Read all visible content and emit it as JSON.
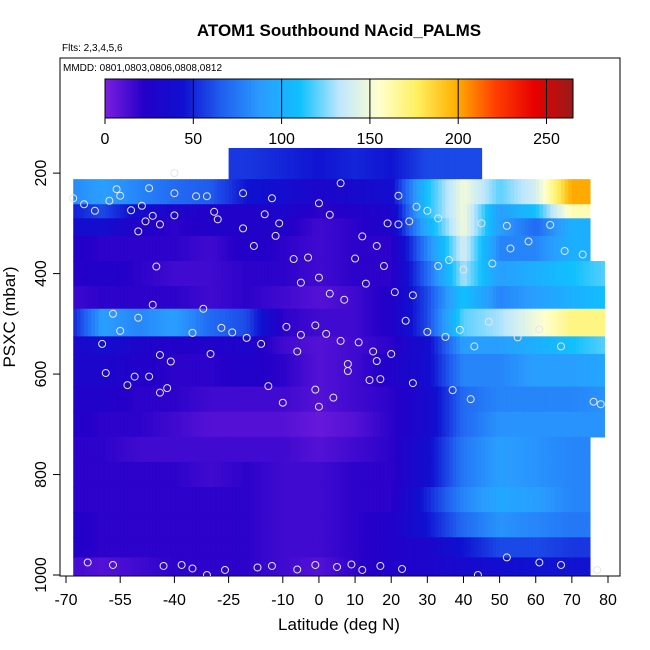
{
  "chart_data": {
    "type": "heatmap",
    "title": "ATOM1 Southbound NAcid_PALMS",
    "flights_note": "Flts: 2,3,4,5,6",
    "dates_note": "MMDD: 0801,0803,0806,0808,0812",
    "xlabel": "Latitude (deg N)",
    "ylabel": "PSXC (mbar)",
    "xlim": [
      -70,
      80
    ],
    "ylim": [
      1000,
      0
    ],
    "x_ticks": [
      -70,
      -55,
      -40,
      -25,
      -10,
      0,
      10,
      20,
      30,
      40,
      50,
      60,
      70,
      80
    ],
    "x_tick_labels": [
      "-70",
      "-55",
      "-40",
      "-25",
      "-10",
      "0",
      "10",
      "20",
      "30",
      "40",
      "50",
      "60",
      "70",
      "80"
    ],
    "y_ticks": [
      200,
      400,
      600,
      800,
      1000
    ],
    "y_tick_labels": [
      "200",
      "400",
      "600",
      "800",
      "1000"
    ],
    "colorbar": {
      "range": [
        0,
        265
      ],
      "ticks": [
        0,
        50,
        100,
        150,
        200,
        250
      ],
      "tick_labels": [
        "0",
        "50",
        "100",
        "150",
        "200",
        "250"
      ],
      "colors": [
        "#7b1fe0",
        "#2400c8",
        "#1010d0",
        "#2060f0",
        "#2a9cff",
        "#10c0ff",
        "#bde6ff",
        "#ffffd0",
        "#fff060",
        "#ffb000",
        "#ff4000",
        "#e80000",
        "#9a1a1a"
      ]
    },
    "pressure_levels": [
      [
        150,
        212
      ],
      [
        212,
        262
      ],
      [
        262,
        290
      ],
      [
        290,
        325
      ],
      [
        325,
        375
      ],
      [
        375,
        425
      ],
      [
        425,
        470
      ],
      [
        470,
        525
      ],
      [
        525,
        560
      ],
      [
        560,
        625
      ],
      [
        625,
        675
      ],
      [
        675,
        725
      ],
      [
        725,
        775
      ],
      [
        775,
        825
      ],
      [
        825,
        875
      ],
      [
        875,
        925
      ],
      [
        925,
        965
      ],
      [
        965,
        1000
      ]
    ],
    "latitude_nodes": [
      -70,
      -60,
      -50,
      -40,
      -30,
      -20,
      -10,
      0,
      10,
      20,
      30,
      40,
      50,
      60,
      70,
      80
    ],
    "values": [
      [
        null,
        null,
        null,
        null,
        null,
        55,
        50,
        45,
        50,
        45,
        60,
        60,
        null,
        null,
        null,
        null
      ],
      [
        80,
        90,
        80,
        70,
        65,
        45,
        40,
        30,
        35,
        40,
        110,
        150,
        120,
        140,
        200,
        null
      ],
      [
        45,
        60,
        40,
        30,
        25,
        25,
        30,
        20,
        25,
        30,
        110,
        150,
        90,
        110,
        160,
        null
      ],
      [
        40,
        40,
        25,
        20,
        25,
        25,
        25,
        15,
        20,
        30,
        100,
        150,
        90,
        70,
        100,
        null
      ],
      [
        25,
        20,
        20,
        20,
        15,
        25,
        20,
        15,
        20,
        20,
        80,
        140,
        80,
        80,
        100,
        null
      ],
      [
        20,
        25,
        20,
        15,
        15,
        20,
        20,
        15,
        20,
        20,
        70,
        130,
        90,
        100,
        110,
        120
      ],
      [
        15,
        20,
        20,
        20,
        15,
        20,
        15,
        10,
        15,
        25,
        60,
        110,
        80,
        90,
        100,
        110
      ],
      [
        40,
        90,
        80,
        90,
        70,
        60,
        20,
        15,
        15,
        25,
        60,
        120,
        130,
        150,
        170,
        170
      ],
      [
        30,
        40,
        30,
        25,
        25,
        30,
        15,
        10,
        15,
        20,
        40,
        90,
        90,
        100,
        110,
        120
      ],
      [
        30,
        30,
        25,
        20,
        20,
        25,
        20,
        10,
        15,
        25,
        40,
        80,
        80,
        90,
        90,
        95
      ],
      [
        25,
        25,
        20,
        20,
        15,
        15,
        15,
        10,
        15,
        20,
        35,
        70,
        80,
        80,
        80,
        85
      ],
      [
        25,
        20,
        20,
        15,
        10,
        10,
        10,
        5,
        10,
        20,
        35,
        70,
        85,
        85,
        85,
        85
      ],
      [
        20,
        20,
        15,
        15,
        15,
        15,
        15,
        10,
        15,
        20,
        40,
        75,
        90,
        85,
        80,
        null
      ],
      [
        20,
        20,
        20,
        20,
        15,
        20,
        15,
        15,
        20,
        20,
        40,
        75,
        90,
        85,
        80,
        null
      ],
      [
        20,
        20,
        20,
        20,
        20,
        20,
        15,
        15,
        20,
        20,
        50,
        80,
        95,
        90,
        80,
        null
      ],
      [
        25,
        20,
        20,
        20,
        20,
        20,
        15,
        15,
        20,
        25,
        45,
        70,
        85,
        80,
        75,
        null
      ],
      [
        25,
        20,
        20,
        20,
        20,
        20,
        15,
        15,
        20,
        25,
        30,
        45,
        60,
        60,
        55,
        null
      ],
      [
        15,
        10,
        15,
        20,
        20,
        20,
        15,
        10,
        20,
        25,
        30,
        35,
        40,
        45,
        45,
        null
      ]
    ],
    "obs_points": [
      [
        -31,
        1000
      ],
      [
        -64,
        975
      ],
      [
        -57,
        980
      ],
      [
        -43,
        982
      ],
      [
        -38,
        980
      ],
      [
        -35,
        987
      ],
      [
        -26,
        990
      ],
      [
        -17,
        985
      ],
      [
        -13,
        982
      ],
      [
        -6,
        989
      ],
      [
        -1,
        980
      ],
      [
        5,
        984
      ],
      [
        9,
        979
      ],
      [
        12,
        990
      ],
      [
        17,
        982
      ],
      [
        23,
        988
      ],
      [
        44,
        1000
      ],
      [
        52,
        965
      ],
      [
        61,
        975
      ],
      [
        67,
        980
      ],
      [
        77,
        990
      ],
      [
        -49,
        265
      ],
      [
        -40,
        200
      ],
      [
        -21,
        240
      ],
      [
        -13,
        250
      ],
      [
        0,
        260
      ],
      [
        3,
        283
      ],
      [
        6,
        220
      ],
      [
        22,
        245
      ],
      [
        27,
        267
      ],
      [
        33,
        290
      ],
      [
        45,
        300
      ],
      [
        52,
        305
      ],
      [
        -57,
        480
      ],
      [
        -32,
        470
      ],
      [
        -27,
        508
      ],
      [
        -20,
        528
      ],
      [
        -16,
        540
      ],
      [
        -6,
        555
      ],
      [
        8,
        580
      ],
      [
        17,
        610
      ],
      [
        26,
        618
      ],
      [
        37,
        632
      ],
      [
        42,
        650
      ],
      [
        -56,
        232
      ],
      [
        -47,
        230
      ],
      [
        -45,
        386
      ],
      [
        -44,
        637
      ],
      [
        -42,
        628
      ],
      [
        -53,
        622
      ],
      [
        -47,
        605
      ],
      [
        -59,
        598
      ],
      [
        -51,
        605
      ],
      [
        -14,
        624
      ],
      [
        -10,
        657
      ],
      [
        0,
        665
      ],
      [
        4,
        647
      ],
      [
        -1,
        631
      ],
      [
        8,
        594
      ],
      [
        14,
        612
      ],
      [
        16,
        574
      ],
      [
        -40,
        284
      ],
      [
        -44,
        302
      ],
      [
        -31,
        246
      ],
      [
        -28,
        292
      ],
      [
        -18,
        345
      ],
      [
        -11,
        300
      ],
      [
        -3,
        368
      ],
      [
        0,
        408
      ],
      [
        10,
        370
      ],
      [
        16,
        345
      ],
      [
        19,
        300
      ],
      [
        22,
        302
      ],
      [
        25,
        296
      ],
      [
        30,
        275
      ],
      [
        12,
        326
      ],
      [
        -60,
        540
      ],
      [
        -55,
        514
      ],
      [
        -50,
        488
      ],
      [
        -46,
        462
      ],
      [
        -44,
        562
      ],
      [
        -41,
        575
      ],
      [
        -35,
        518
      ],
      [
        -30,
        560
      ],
      [
        -24,
        517
      ],
      [
        -9,
        506
      ],
      [
        -5,
        522
      ],
      [
        -1,
        503
      ],
      [
        2,
        520
      ],
      [
        6,
        534
      ],
      [
        11,
        537
      ],
      [
        15,
        555
      ],
      [
        20,
        560
      ],
      [
        24,
        494
      ],
      [
        30,
        516
      ],
      [
        35,
        526
      ],
      [
        39,
        512
      ],
      [
        43,
        545
      ],
      [
        47,
        496
      ],
      [
        55,
        527
      ],
      [
        61,
        511
      ],
      [
        67,
        545
      ],
      [
        76,
        655
      ],
      [
        78,
        660
      ],
      [
        -68,
        250
      ],
      [
        -65,
        262
      ],
      [
        -62,
        275
      ],
      [
        -58,
        255
      ],
      [
        -55,
        245
      ],
      [
        -52,
        274
      ],
      [
        -50,
        316
      ],
      [
        -48,
        296
      ],
      [
        -46,
        285
      ],
      [
        -40,
        240
      ],
      [
        -34,
        246
      ],
      [
        -29,
        277
      ],
      [
        -21,
        310
      ],
      [
        -15,
        282
      ],
      [
        -12,
        325
      ],
      [
        -7,
        371
      ],
      [
        -5,
        418
      ],
      [
        3,
        440
      ],
      [
        7,
        452
      ],
      [
        13,
        420
      ],
      [
        18,
        385
      ],
      [
        21,
        437
      ],
      [
        26,
        443
      ],
      [
        33,
        385
      ],
      [
        36,
        373
      ],
      [
        40,
        392
      ],
      [
        48,
        380
      ],
      [
        53,
        350
      ],
      [
        58,
        336
      ],
      [
        64,
        303
      ],
      [
        68,
        355
      ],
      [
        73,
        362
      ]
    ]
  }
}
